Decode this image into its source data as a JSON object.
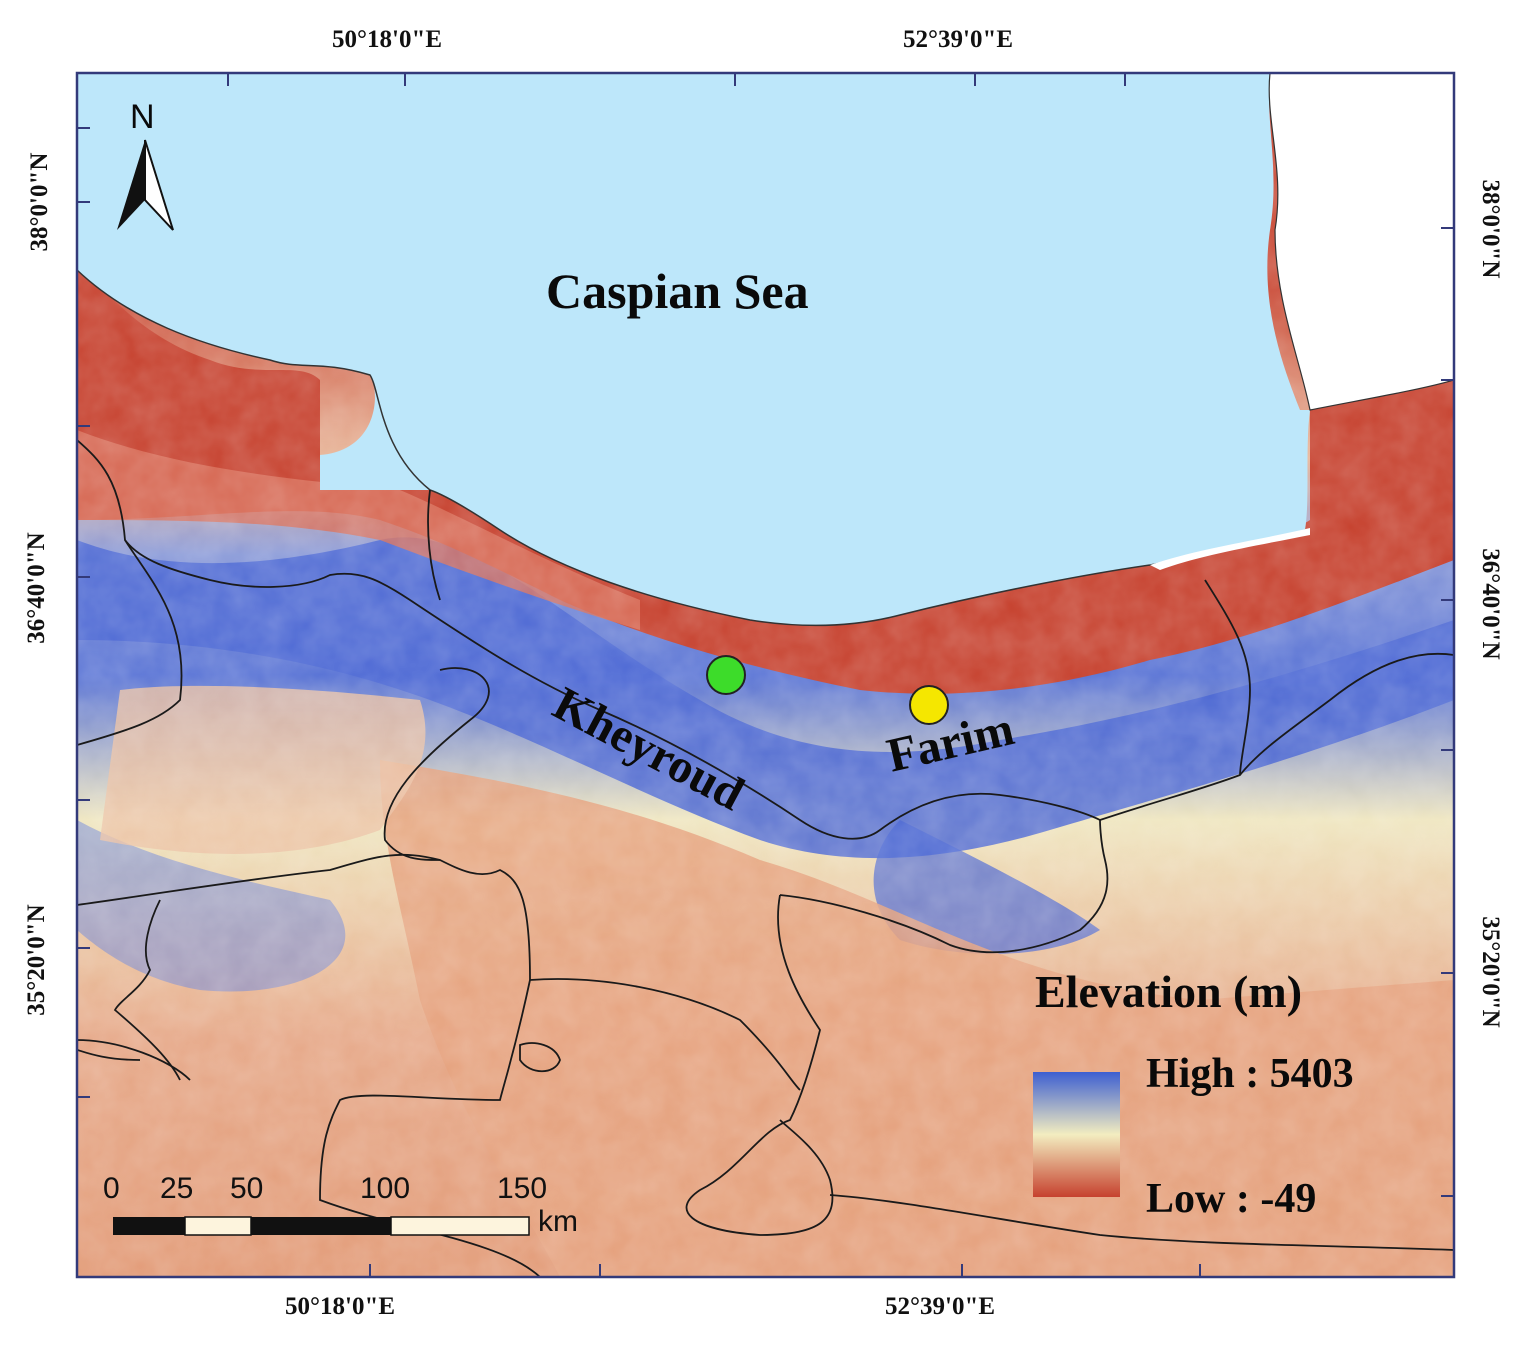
{
  "coords": {
    "top_left": "50°18'0\"E",
    "top_right": "52°39'0\"E",
    "bottom_left": "50°18'0\"E",
    "bottom_right": "52°39'0\"E",
    "left_top": "38°0'0\"N",
    "left_mid": "36°40'0\"N",
    "left_bottom": "35°20'0\"N",
    "right_top": "38°0'0\"N",
    "right_mid": "36°40'0\"N",
    "right_bottom": "35°20'0\"N"
  },
  "north_arrow": {
    "label": "N",
    "icon": "north-arrow-icon"
  },
  "sea_label": "Caspian Sea",
  "places": [
    {
      "name": "Kheyroud",
      "marker_color": "#3ddc2a"
    },
    {
      "name": "Farim",
      "marker_color": "#f5e700"
    }
  ],
  "legend": {
    "title": "Elevation (m)",
    "high_label": "High : 5403",
    "low_label": "Low : -49",
    "high_value": 5403,
    "low_value": -49,
    "colors": [
      "#3d5fd1",
      "#f3edc0",
      "#c6412e"
    ]
  },
  "scale_bar": {
    "ticks": [
      "0",
      "25",
      "50",
      "100",
      "150"
    ],
    "unit": "km"
  },
  "colors": {
    "sea": "#bde7fa",
    "lowland": "#c6412e",
    "highland": "#3d5fd1",
    "mid": "#f3edc0",
    "plateau": "#e4a07c",
    "boundary": "#1a1a1a"
  }
}
